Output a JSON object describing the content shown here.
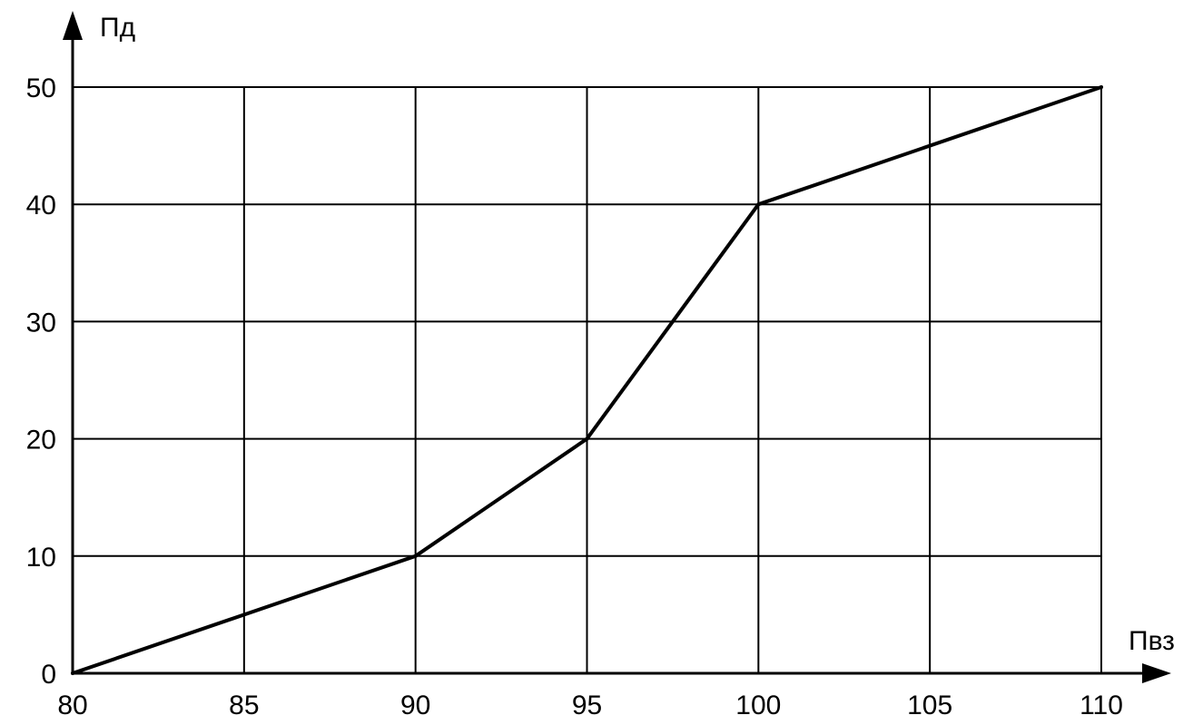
{
  "chart_data": {
    "type": "line",
    "title": "",
    "xlabel": "Пвз",
    "ylabel": "Пд",
    "x_ticks": [
      "80",
      "85",
      "90",
      "95",
      "100",
      "105",
      "110"
    ],
    "y_ticks": [
      "0",
      "10",
      "20",
      "30",
      "40",
      "50"
    ],
    "xlim": [
      80,
      110
    ],
    "ylim": [
      0,
      50
    ],
    "grid": true,
    "series": [
      {
        "x": [
          80,
          90,
          95,
          100,
          110
        ],
        "y": [
          0,
          10,
          20,
          40,
          50
        ]
      }
    ]
  },
  "colors": {
    "line": "#000000",
    "grid": "#000000",
    "background": "#ffffff"
  }
}
